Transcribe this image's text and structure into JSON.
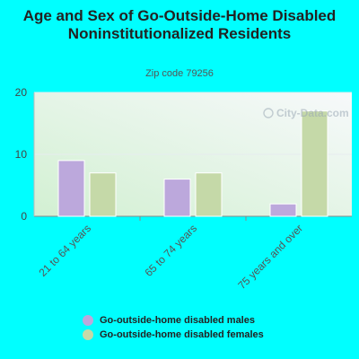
{
  "chart_data": {
    "type": "bar",
    "title": "Age and Sex of Go-Outside-Home Disabled Noninstitutionalized Residents",
    "subtitle": "Zip code 79256",
    "categories": [
      "21 to 64 years",
      "65 to 74 years",
      "75 years and over"
    ],
    "series": [
      {
        "name": "Go-outside-home disabled males",
        "values": [
          9,
          6,
          2
        ],
        "color": "#bca8dc"
      },
      {
        "name": "Go-outside-home disabled females",
        "values": [
          7,
          7,
          17
        ],
        "color": "#c5d9a8"
      }
    ],
    "ylim": [
      0,
      20
    ],
    "yticks": [
      0,
      10,
      20
    ],
    "grid": true,
    "legend": "bottom"
  },
  "watermark": "City-Data.com"
}
